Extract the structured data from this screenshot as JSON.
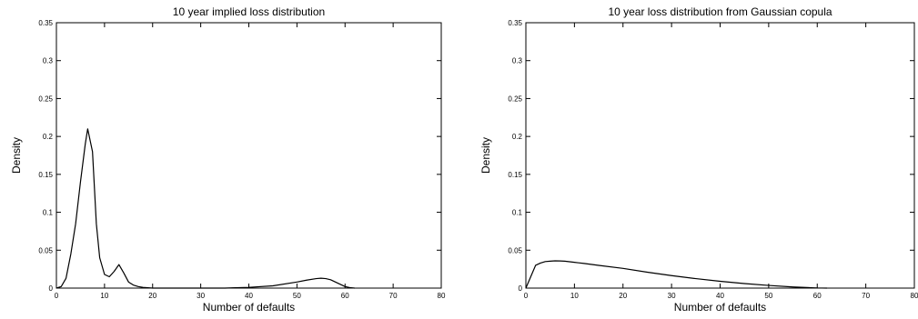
{
  "chart_data": [
    {
      "type": "line",
      "title": "10 year implied loss distribution",
      "xlabel": "Number of defaults",
      "ylabel": "Density",
      "xlim": [
        0,
        80
      ],
      "ylim": [
        0,
        0.35
      ],
      "xticks": [
        "0",
        "10",
        "20",
        "30",
        "40",
        "50",
        "60",
        "70",
        "80"
      ],
      "yticks": [
        "0",
        "0.05",
        "0.1",
        "0.15",
        "0.2",
        "0.25",
        "0.3",
        "0.35"
      ],
      "grid": false,
      "series": [
        {
          "x": [
            0,
            1,
            2,
            3,
            4,
            5,
            6,
            6.5,
            7.5,
            8.3,
            9,
            10,
            11,
            12,
            13,
            14,
            15,
            16,
            17,
            18,
            20,
            25,
            30,
            35,
            40,
            45,
            50,
            52,
            54,
            55,
            56,
            57,
            58,
            59,
            60,
            61,
            62
          ],
          "y": [
            0,
            0.002,
            0.013,
            0.045,
            0.085,
            0.14,
            0.19,
            0.21,
            0.18,
            0.085,
            0.04,
            0.018,
            0.015,
            0.022,
            0.031,
            0.02,
            0.008,
            0.004,
            0.002,
            0.001,
            0,
            0,
            0,
            0,
            0.001,
            0.003,
            0.008,
            0.0105,
            0.0125,
            0.013,
            0.0125,
            0.011,
            0.008,
            0.005,
            0.002,
            0.0007,
            0
          ]
        }
      ]
    },
    {
      "type": "line",
      "title": "10 year loss distribution from Gaussian copula",
      "xlabel": "Number of defaults",
      "ylabel": "Density",
      "xlim": [
        0,
        80
      ],
      "ylim": [
        0,
        0.35
      ],
      "xticks": [
        "0",
        "10",
        "20",
        "30",
        "40",
        "50",
        "60",
        "70",
        "80"
      ],
      "yticks": [
        "0",
        "0.05",
        "0.1",
        "0.15",
        "0.2",
        "0.25",
        "0.3",
        "0.35"
      ],
      "grid": false,
      "series": [
        {
          "x": [
            0,
            1,
            2,
            3,
            4,
            5,
            6,
            7,
            8,
            10,
            12,
            15,
            20,
            25,
            30,
            35,
            40,
            45,
            50,
            55,
            60,
            62
          ],
          "y": [
            0,
            0.015,
            0.03,
            0.033,
            0.035,
            0.0355,
            0.036,
            0.0358,
            0.0355,
            0.034,
            0.0325,
            0.03,
            0.026,
            0.021,
            0.0165,
            0.0125,
            0.009,
            0.006,
            0.0035,
            0.0015,
            0.0002,
            0
          ]
        }
      ]
    }
  ]
}
